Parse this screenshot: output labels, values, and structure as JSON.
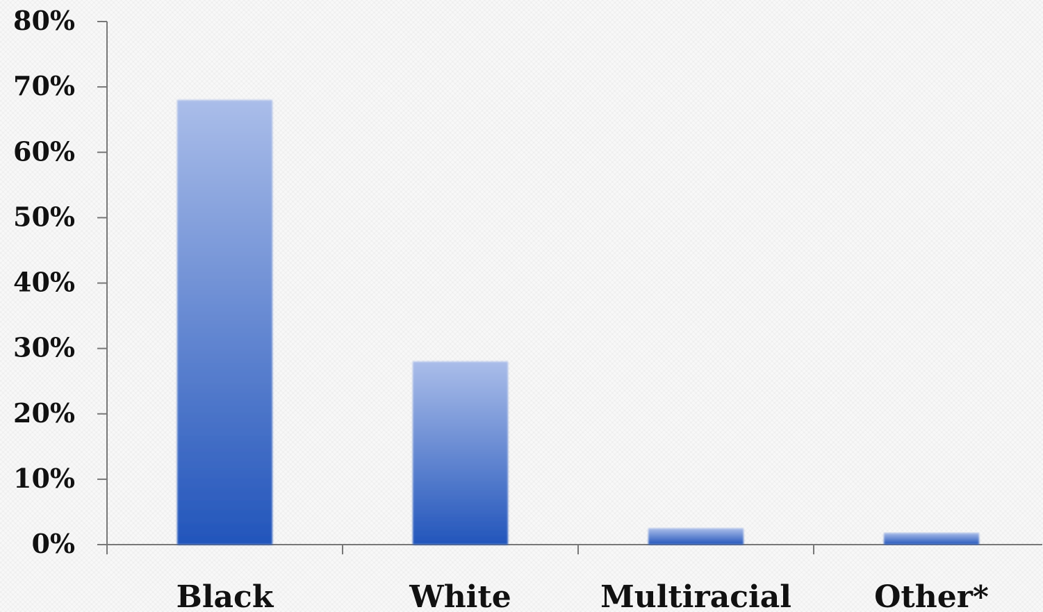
{
  "chart_data": {
    "type": "bar",
    "categories": [
      "Black",
      "White",
      "Multiracial",
      "Other*"
    ],
    "values": [
      68,
      28,
      2.5,
      1.8
    ],
    "ylim": [
      0,
      80
    ],
    "y_ticks": [
      "0%",
      "10%",
      "20%",
      "30%",
      "40%",
      "50%",
      "60%",
      "70%",
      "80%"
    ],
    "y_tick_values": [
      0,
      10,
      20,
      30,
      40,
      50,
      60,
      70,
      80
    ],
    "grid": false,
    "legend": "none",
    "colors": {
      "bar_top": "#aabde9",
      "bar_bottom": "#2255bb",
      "axis": "#777777",
      "text": "#111111"
    }
  }
}
